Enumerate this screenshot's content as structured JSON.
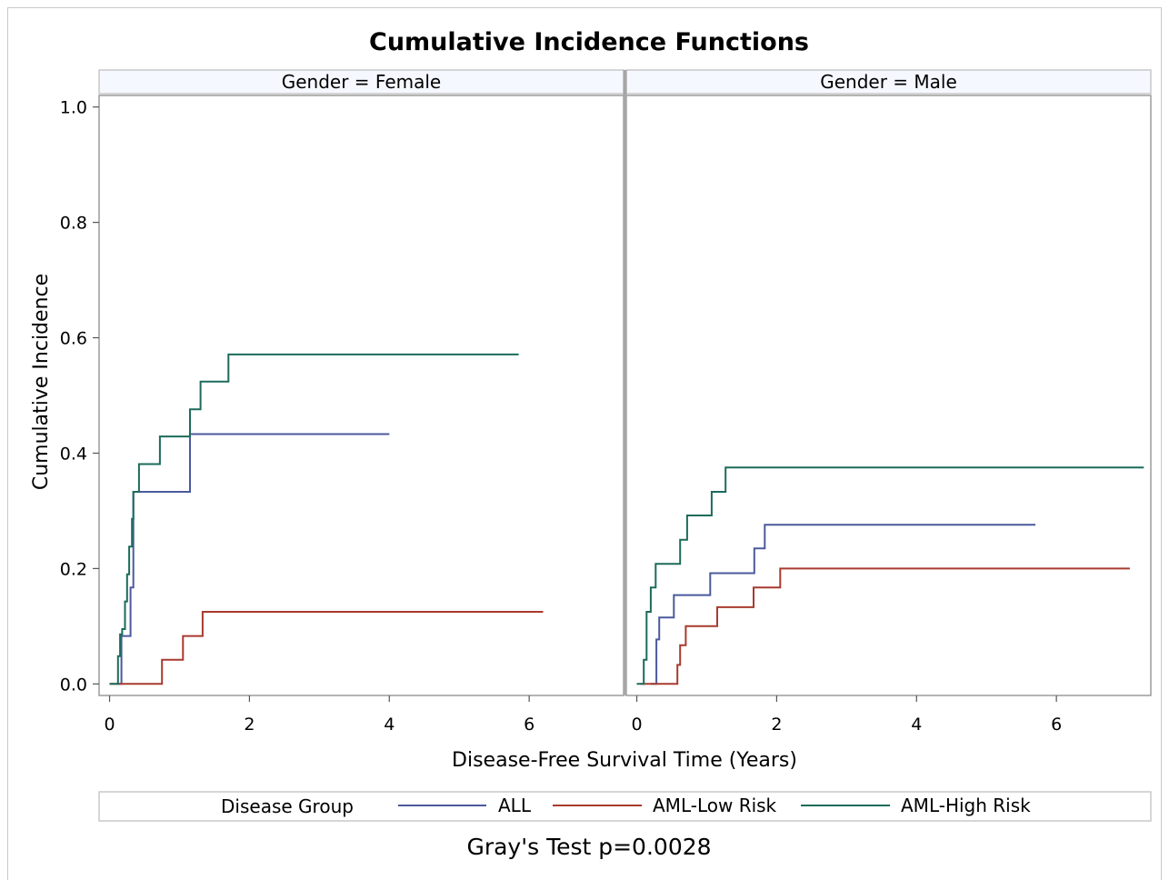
{
  "chart_data": {
    "type": "line",
    "title": "Cumulative Incidence Functions",
    "xlabel": "Disease-Free Survival Time (Years)",
    "ylabel": "Cumulative Incidence",
    "xlim": [
      -0.15,
      7.35
    ],
    "ylim": [
      -0.02,
      1.02
    ],
    "x_ticks": [
      0,
      2,
      4,
      6
    ],
    "y_ticks": [
      "0.0",
      "0.2",
      "0.4",
      "0.6",
      "0.8",
      "1.0"
    ],
    "step": true,
    "grid": false,
    "legend": {
      "placement": "bottom",
      "title": "Disease Group",
      "entries": [
        {
          "name": "ALL",
          "color": "#4b5a9c"
        },
        {
          "name": "AML-Low Risk",
          "color": "#a83a2e"
        },
        {
          "name": "AML-High Risk",
          "color": "#1c6b5a"
        }
      ]
    },
    "footnote": "Gray's Test p=0.0028",
    "panels": [
      {
        "label": "Gender = Female",
        "series": [
          {
            "name": "ALL",
            "x": [
              0.13,
              0.17,
              0.27,
              0.3,
              0.34,
              0.62,
              1.15,
              4.0
            ],
            "y": [
              0.0,
              0.083,
              0.083,
              0.167,
              0.333,
              0.333,
              0.433,
              0.433
            ]
          },
          {
            "name": "AML-Low Risk",
            "x": [
              0.0,
              0.75,
              1.05,
              1.33,
              6.2
            ],
            "y": [
              0.0,
              0.042,
              0.083,
              0.125,
              0.125
            ]
          },
          {
            "name": "AML-High Risk",
            "x": [
              0.0,
              0.12,
              0.15,
              0.18,
              0.22,
              0.25,
              0.28,
              0.32,
              0.34,
              0.42,
              0.72,
              1.15,
              1.3,
              1.7,
              5.85
            ],
            "y": [
              0.0,
              0.048,
              0.086,
              0.095,
              0.143,
              0.19,
              0.238,
              0.286,
              0.333,
              0.381,
              0.429,
              0.476,
              0.524,
              0.571,
              0.571
            ]
          }
        ]
      },
      {
        "label": "Gender = Male",
        "series": [
          {
            "name": "ALL",
            "x": [
              0.2,
              0.28,
              0.32,
              0.53,
              1.05,
              1.68,
              1.83,
              5.7
            ],
            "y": [
              0.0,
              0.077,
              0.115,
              0.154,
              0.192,
              0.235,
              0.276,
              0.276
            ]
          },
          {
            "name": "AML-Low Risk",
            "x": [
              0.05,
              0.58,
              0.62,
              0.7,
              1.15,
              1.67,
              2.05,
              7.05
            ],
            "y": [
              0.0,
              0.033,
              0.067,
              0.1,
              0.133,
              0.167,
              0.2,
              0.2
            ]
          },
          {
            "name": "AML-High Risk",
            "x": [
              0.0,
              0.1,
              0.14,
              0.2,
              0.27,
              0.62,
              0.72,
              1.07,
              1.27,
              7.25
            ],
            "y": [
              0.0,
              0.042,
              0.125,
              0.167,
              0.208,
              0.25,
              0.292,
              0.333,
              0.375,
              0.375
            ]
          }
        ]
      }
    ]
  }
}
